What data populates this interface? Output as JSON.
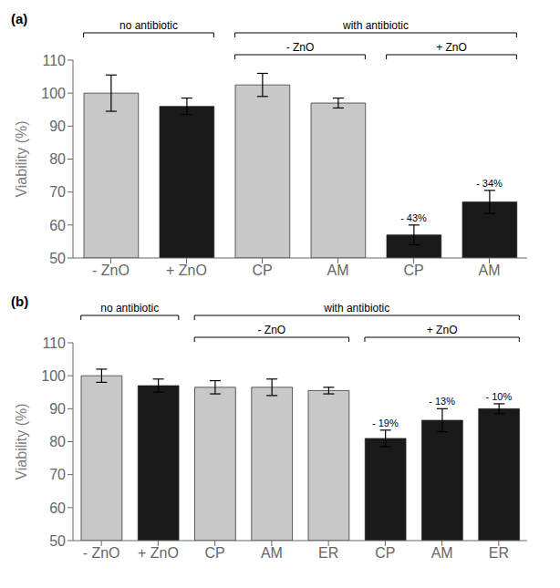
{
  "chart_data": [
    {
      "type": "bar",
      "title": "(a)",
      "categories": [
        "- ZnO",
        "+ ZnO",
        "CP",
        "AM",
        "CP",
        "AM"
      ],
      "values": [
        100,
        96,
        102.5,
        97,
        57,
        67
      ],
      "errors": [
        5.5,
        2.5,
        3.5,
        1.5,
        3.0,
        3.5
      ],
      "colors": [
        "#c8c8c8",
        "#1a1a1a",
        "#c8c8c8",
        "#c8c8c8",
        "#1a1a1a",
        "#1a1a1a"
      ],
      "annotations": [
        null,
        null,
        null,
        null,
        "- 43%",
        "- 34%"
      ],
      "groups": [
        {
          "label": "no antibiotic",
          "first": 0,
          "last": 1
        },
        {
          "label": "with antibiotic",
          "first": 2,
          "last": 5
        },
        {
          "label": "- ZnO",
          "first": 2,
          "last": 3
        },
        {
          "label": "+ ZnO",
          "first": 4,
          "last": 5
        }
      ],
      "ylim": [
        50,
        110
      ],
      "yticks": [
        50,
        60,
        70,
        80,
        90,
        100,
        110
      ],
      "ylabel": "Viability (%)",
      "grid": false
    },
    {
      "type": "bar",
      "title": "(b)",
      "categories": [
        "- ZnO",
        "+ ZnO",
        "CP",
        "AM",
        "ER",
        "CP",
        "AM",
        "ER"
      ],
      "values": [
        100,
        97,
        96.5,
        96.5,
        95.5,
        81,
        86.5,
        90
      ],
      "errors": [
        2.0,
        2.0,
        2.0,
        2.5,
        1.0,
        2.5,
        3.5,
        1.5
      ],
      "colors": [
        "#c8c8c8",
        "#1a1a1a",
        "#c8c8c8",
        "#c8c8c8",
        "#c8c8c8",
        "#1a1a1a",
        "#1a1a1a",
        "#1a1a1a"
      ],
      "annotations": [
        null,
        null,
        null,
        null,
        null,
        "- 19%",
        "- 13%",
        "- 10%"
      ],
      "groups": [
        {
          "label": "no antibiotic",
          "first": 0,
          "last": 1
        },
        {
          "label": "with antibiotic",
          "first": 2,
          "last": 7
        },
        {
          "label": "- ZnO",
          "first": 2,
          "last": 4
        },
        {
          "label": "+ ZnO",
          "first": 5,
          "last": 7
        }
      ],
      "ylim": [
        50,
        110
      ],
      "yticks": [
        50,
        60,
        70,
        80,
        90,
        100,
        110
      ],
      "ylabel": "Viability (%)",
      "grid": false
    }
  ]
}
